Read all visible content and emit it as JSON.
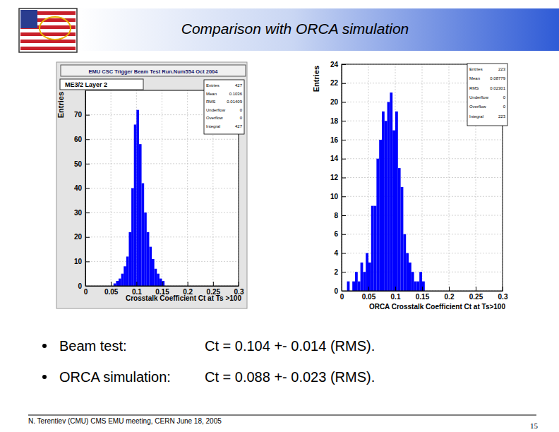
{
  "slide": {
    "title": "Comparison with ORCA simulation",
    "bullets": [
      {
        "label": "Beam test:",
        "text": "Ct = 0.104 +- 0.014 (RMS)."
      },
      {
        "label": "ORCA simulation:",
        "text": "Ct = 0.088 +- 0.023 (RMS)."
      }
    ],
    "footer": "N. Terentiev (CMU) CMS EMU meeting, CERN June 18, 2005",
    "page_number": 15
  },
  "chart_data": [
    {
      "type": "histogram",
      "title": "EMU CSC Trigger Beam Test Run.Num554 Oct 2004",
      "subtitle": "ME3/2 Layer 2",
      "x_label": "Crosstalk Coefficient Ct at Ts >100",
      "y_label": "Entries",
      "bins": [
        0.055,
        0.06,
        0.065,
        0.07,
        0.075,
        0.08,
        0.085,
        0.09,
        0.095,
        0.1,
        0.105,
        0.11,
        0.115,
        0.12,
        0.125,
        0.13,
        0.135,
        0.14,
        0.145,
        0.15,
        0.155
      ],
      "values": [
        1,
        2,
        3,
        5,
        8,
        12,
        22,
        40,
        66,
        72,
        58,
        42,
        30,
        22,
        16,
        11,
        7,
        5,
        3,
        2
      ],
      "color": "#0000ff",
      "xlim": [
        0,
        0.3
      ],
      "xticks": [
        0,
        0.05,
        0.1,
        0.15,
        0.2,
        0.25,
        0.3
      ],
      "ylim": [
        0,
        80
      ],
      "yticks": [
        0,
        10,
        20,
        30,
        40,
        50,
        60,
        70
      ],
      "grid": true,
      "stats": [
        {
          "label": "Entries",
          "value": 427
        },
        {
          "label": "Mean",
          "value": 0.1036
        },
        {
          "label": "RMS",
          "value": 0.01409
        },
        {
          "label": "Underflow",
          "value": 0
        },
        {
          "label": "Overflow",
          "value": 0
        },
        {
          "label": "Integral",
          "value": 427
        }
      ]
    },
    {
      "type": "histogram",
      "x_label": "ORCA Crosstalk Coefficient Ct at Ts>100",
      "y_label": "Entries",
      "bins": [
        0.01,
        0.015,
        0.02,
        0.025,
        0.03,
        0.035,
        0.04,
        0.045,
        0.05,
        0.055,
        0.06,
        0.065,
        0.07,
        0.075,
        0.08,
        0.085,
        0.09,
        0.095,
        0.1,
        0.105,
        0.11,
        0.115,
        0.12,
        0.125,
        0.13,
        0.135,
        0.14,
        0.145,
        0.15,
        0.155
      ],
      "values": [
        1,
        0,
        1,
        2,
        1,
        3,
        2,
        4,
        3,
        9,
        9,
        14,
        16,
        19,
        18,
        20,
        21,
        17,
        19,
        13,
        11,
        6,
        4,
        3,
        2,
        1,
        1,
        2,
        1
      ],
      "color": "#0000ff",
      "xlim": [
        0,
        0.3
      ],
      "xticks": [
        0,
        0.05,
        0.1,
        0.15,
        0.2,
        0.25,
        0.3
      ],
      "ylim": [
        0,
        24
      ],
      "yticks": [
        0,
        2,
        4,
        6,
        8,
        10,
        12,
        14,
        16,
        18,
        20,
        22,
        24
      ],
      "grid": true,
      "stats": [
        {
          "label": "Entries",
          "value": 223
        },
        {
          "label": "Mean",
          "value": 0.08779
        },
        {
          "label": "RMS",
          "value": 0.02301
        },
        {
          "label": "Underflow",
          "value": 0
        },
        {
          "label": "Overflow",
          "value": 0
        },
        {
          "label": "Integral",
          "value": 223
        }
      ]
    }
  ]
}
